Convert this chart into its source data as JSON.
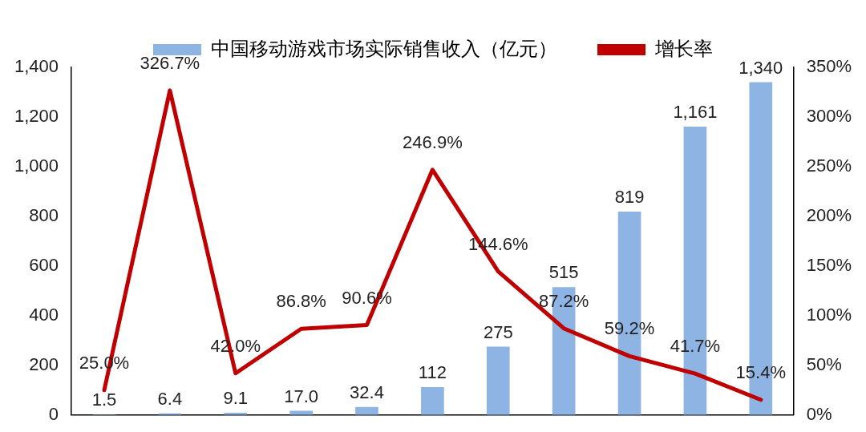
{
  "chart_data": {
    "type": "bar",
    "categories": [
      null,
      null,
      null,
      null,
      null,
      null,
      null,
      null,
      null,
      null,
      null
    ],
    "series": [
      {
        "name": "中国移动游戏市场实际销售收入（亿元）",
        "color": "#8db4e2",
        "values": [
          1.5,
          6.4,
          9.1,
          17.0,
          32.4,
          112,
          275,
          515,
          819,
          1161,
          1340
        ],
        "value_labels": [
          "1.5",
          "6.4",
          "9.1",
          "17.0",
          "32.4",
          "112",
          "275",
          "515",
          "819",
          "1,161",
          "1,340"
        ]
      },
      {
        "name": "增长率",
        "type": "line",
        "axis": "y2",
        "color": "#c00000",
        "values": [
          25.0,
          326.7,
          42.0,
          86.8,
          90.6,
          246.9,
          144.6,
          87.2,
          59.2,
          41.7,
          15.4
        ],
        "value_labels": [
          "25.0%",
          "326.7%",
          "42.0%",
          "86.8%",
          "90.6%",
          "246.9%",
          "144.6%",
          "87.2%",
          "59.2%",
          "41.7%",
          "15.4%"
        ]
      }
    ],
    "ylim": [
      0,
      1400
    ],
    "yticks": [
      0,
      200,
      400,
      600,
      800,
      {
        "value": 1000,
        "label": "1,000"
      },
      {
        "value": 1200,
        "label": "1,200"
      },
      {
        "value": 1400,
        "label": "1,400"
      }
    ],
    "y2lim": [
      0,
      350
    ],
    "y2ticks": [
      {
        "value": 0,
        "label": "0%"
      },
      {
        "value": 50,
        "label": "50%"
      },
      {
        "value": 100,
        "label": "100%"
      },
      {
        "value": 150,
        "label": "150%"
      },
      {
        "value": 200,
        "label": "200%"
      },
      {
        "value": 250,
        "label": "250%"
      },
      {
        "value": 300,
        "label": "300%"
      },
      {
        "value": 350,
        "label": "350%"
      }
    ],
    "legend": "top",
    "grid": false,
    "marker": "none",
    "line_style": "solid"
  }
}
